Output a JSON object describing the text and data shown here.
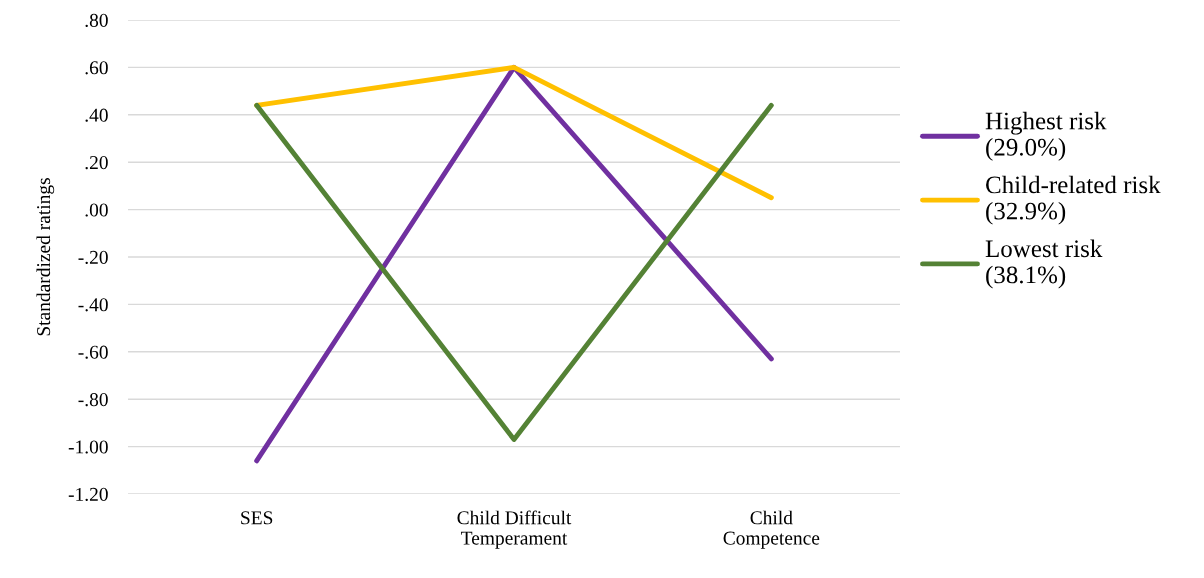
{
  "chart_data": {
    "type": "line",
    "ylabel": "Standardized ratings",
    "categories": [
      "SES",
      "Child Difficult\nTemperament",
      "Child\nCompetence"
    ],
    "series": [
      {
        "name": "Highest risk\n(29.0%)",
        "color": "#7030a0",
        "values": [
          -1.06,
          0.6,
          -0.63
        ]
      },
      {
        "name": "Child-related risk\n(32.9%)",
        "color": "#ffc000",
        "values": [
          0.44,
          0.6,
          0.05
        ]
      },
      {
        "name": "Lowest risk\n(38.1%)",
        "color": "#548235",
        "values": [
          0.44,
          -0.97,
          0.44
        ]
      }
    ],
    "ylim": [
      -1.2,
      0.8
    ],
    "yticks": [
      {
        "value": -1.2,
        "label": "-1.20"
      },
      {
        "value": -1.0,
        "label": "-1.00"
      },
      {
        "value": -0.8,
        "label": "-.80"
      },
      {
        "value": -0.6,
        "label": "-.60"
      },
      {
        "value": -0.4,
        "label": "-.40"
      },
      {
        "value": -0.2,
        "label": "-.20"
      },
      {
        "value": 0,
        "label": ".00"
      },
      {
        "value": 0.2,
        "label": ".20"
      },
      {
        "value": 0.4,
        "label": ".40"
      },
      {
        "value": 0.6,
        "label": ".60"
      },
      {
        "value": 0.8,
        "label": ".80"
      }
    ],
    "grid": "y",
    "legend": "right",
    "marker": "none",
    "line_style": "solid"
  }
}
